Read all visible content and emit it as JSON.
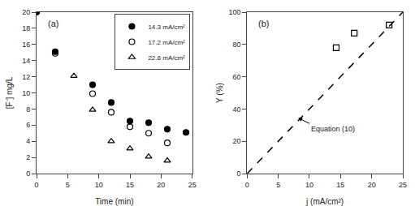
{
  "chart_data": [
    {
      "type": "scatter",
      "xlabel": "Time (min)",
      "ylabel": "[F⁻] mg/L",
      "annotations": [
        {
          "text": "(a)"
        }
      ],
      "legend": "upper right",
      "grid": false,
      "xlim": [
        0,
        25
      ],
      "ylim": [
        0,
        20
      ],
      "xticks": [
        0,
        5,
        10,
        15,
        20,
        25
      ],
      "yticks": [
        0,
        2,
        4,
        6,
        8,
        10,
        12,
        14,
        16,
        18,
        20
      ],
      "series": [
        {
          "name": "14.3 mA/cm²",
          "color": "#000000",
          "marker": "circle",
          "x": [
            0,
            3,
            6,
            9,
            12,
            15,
            18,
            21,
            24
          ],
          "values": [
            20,
            15.1,
            null,
            11.0,
            8.8,
            6.5,
            6.3,
            5.5,
            5.1
          ]
        },
        {
          "name": "17.2 mA/cm²",
          "color": "#000000",
          "marker": "circle-open",
          "x": [
            3,
            9,
            12,
            15,
            18,
            21
          ],
          "values": [
            14.9,
            9.9,
            7.6,
            5.8,
            5.0,
            3.8
          ]
        },
        {
          "name": "22.8 mA/cm²",
          "color": "#000000",
          "marker": "triangle-up-open",
          "x": [
            6,
            9,
            12,
            15,
            18,
            21
          ],
          "values": [
            12.1,
            7.9,
            4.0,
            3.1,
            2.1,
            1.6
          ]
        }
      ]
    },
    {
      "type": "scatter",
      "xlabel": "j (mA/cm²)",
      "ylabel": "Y (%)",
      "annotations": [
        {
          "text": "(b)"
        },
        {
          "text": "Equation (10)",
          "x": 10.0,
          "y": 31.0,
          "arrow_x": 8.2,
          "arrow_y": 34.5
        }
      ],
      "grid": false,
      "xlim": [
        0,
        25
      ],
      "ylim": [
        0,
        100
      ],
      "xticks": [
        0,
        5,
        10,
        15,
        20,
        25
      ],
      "yticks": [
        0,
        20,
        40,
        60,
        80,
        100
      ],
      "series": [
        {
          "type": "line",
          "line_style": "dashed",
          "color": "#000000",
          "x": [
            0,
            25
          ],
          "values": [
            0,
            100
          ]
        },
        {
          "type": "scatter",
          "marker": "square-open",
          "color": "#000000",
          "x": [
            14.3,
            17.2,
            22.8
          ],
          "values": [
            78.0,
            87.0,
            92.0
          ]
        }
      ]
    }
  ]
}
